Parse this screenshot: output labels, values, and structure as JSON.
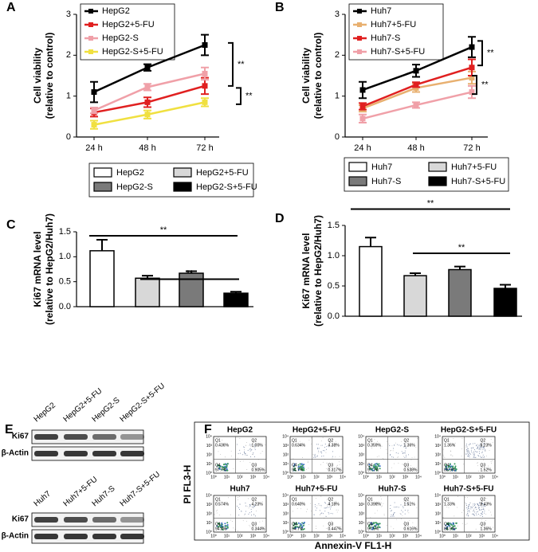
{
  "chart_data": [
    {
      "type": "line",
      "label": "A",
      "ylabel": [
        "Cell viability",
        "(relative to control)"
      ],
      "categories": [
        "24 h",
        "48 h",
        "72 h"
      ],
      "ylim": [
        0,
        3
      ],
      "yticks": [
        0,
        1,
        2,
        3
      ],
      "legend": "top-left",
      "series": [
        {
          "name": "HepG2",
          "color": "#000000",
          "values": [
            1.1,
            1.7,
            2.25
          ],
          "errors": [
            0.25,
            0.08,
            0.25
          ]
        },
        {
          "name": "HepG2+5-FU",
          "color": "#e02020",
          "values": [
            0.6,
            0.85,
            1.25
          ],
          "errors": [
            0.1,
            0.12,
            0.2
          ]
        },
        {
          "name": "HepG2-S",
          "color": "#f0a0a8",
          "values": [
            0.65,
            1.22,
            1.55
          ],
          "errors": [
            0.07,
            0.08,
            0.15
          ]
        },
        {
          "name": "HepG2-S+5-FU",
          "color": "#f0e040",
          "values": [
            0.3,
            0.55,
            0.85
          ],
          "errors": [
            0.1,
            0.1,
            0.1
          ]
        }
      ],
      "brackets": [
        {
          "label": "**",
          "y": [
            2.3,
            1.25
          ]
        },
        {
          "label": "**",
          "y": [
            1.2,
            0.8
          ]
        }
      ]
    },
    {
      "type": "line",
      "label": "B",
      "ylabel": [
        "Cell viability",
        "(relative to control)"
      ],
      "categories": [
        "24 h",
        "48 h",
        "72 h"
      ],
      "ylim": [
        0,
        3
      ],
      "yticks": [
        0,
        1,
        2,
        3
      ],
      "legend": "top-left",
      "series": [
        {
          "name": "Huh7",
          "color": "#000000",
          "values": [
            1.15,
            1.62,
            2.2
          ],
          "errors": [
            0.2,
            0.15,
            0.25
          ]
        },
        {
          "name": "Huh7+5-FU",
          "color": "#e8b070",
          "values": [
            0.7,
            1.2,
            1.45
          ],
          "errors": [
            0.08,
            0.1,
            0.15
          ]
        },
        {
          "name": "Huh7-S",
          "color": "#e02020",
          "values": [
            0.75,
            1.28,
            1.7
          ],
          "errors": [
            0.08,
            0.06,
            0.2
          ]
        },
        {
          "name": "Huh7-S+5-FU",
          "color": "#f0a0a8",
          "values": [
            0.45,
            0.78,
            1.1
          ],
          "errors": [
            0.1,
            0.07,
            0.15
          ]
        }
      ],
      "brackets": [
        {
          "label": "**",
          "y": [
            2.35,
            1.75
          ]
        },
        {
          "label": "**",
          "y": [
            1.5,
            1.05
          ]
        }
      ]
    },
    {
      "type": "bar",
      "label": "C",
      "ylabel": [
        "Ki67 mRNA level",
        "(relative to HepG2/Huh7)"
      ],
      "categories": [
        "HepG2",
        "HepG2+5-FU",
        "HepG2-S",
        "HepG2-S+5-FU"
      ],
      "values": [
        1.12,
        0.57,
        0.67,
        0.27
      ],
      "errors": [
        0.22,
        0.05,
        0.04,
        0.03
      ],
      "colors": [
        "#ffffff",
        "#d8d8d8",
        "#7a7a7a",
        "#000000"
      ],
      "ylim": [
        0,
        1.5
      ],
      "yticks": [
        {
          "value": 0,
          "label": "0.0"
        },
        {
          "value": 0.5,
          "label": "0.5"
        },
        {
          "value": 1,
          "label": "1.0"
        },
        {
          "value": 1.5,
          "label": "1.5"
        }
      ],
      "legend": "top",
      "brackets": [
        {
          "label": "**",
          "y": 1.42
        },
        {
          "label": "**",
          "y": 0.55
        }
      ]
    },
    {
      "type": "bar",
      "label": "D",
      "ylabel": [
        "Ki67 mRNA level",
        "(relative to HepG2/Huh7)"
      ],
      "categories": [
        "Huh7",
        "Huh7+5-FU",
        "Huh7-S",
        "Huh7-S+5-FU"
      ],
      "values": [
        1.15,
        0.67,
        0.77,
        0.46
      ],
      "errors": [
        0.15,
        0.04,
        0.05,
        0.06
      ],
      "colors": [
        "#ffffff",
        "#d8d8d8",
        "#7a7a7a",
        "#000000"
      ],
      "ylim": [
        0,
        1.5
      ],
      "yticks": [
        {
          "value": 0,
          "label": "0.0"
        },
        {
          "value": 0.5,
          "label": "0.5"
        },
        {
          "value": 1,
          "label": "1.0"
        },
        {
          "value": 1.5,
          "label": "1.5"
        }
      ],
      "legend": "top",
      "brackets": [
        {
          "label": "**",
          "y": 1.77
        },
        {
          "label": "**",
          "y": 1.04
        }
      ]
    }
  ],
  "blot": {
    "label": "E",
    "panels": [
      {
        "lanes": [
          "HepG2",
          "HepG2+5-FU",
          "HepG2-S",
          "HepG2-S+5-FU"
        ],
        "rows": [
          "Ki67",
          "β-Actin"
        ]
      },
      {
        "lanes": [
          "Huh7",
          "Huh7+5-FU",
          "Huh7-S",
          "Huh7-S+5-FU"
        ],
        "rows": [
          "Ki67",
          "β-Actin"
        ]
      }
    ]
  },
  "flow": {
    "label": "F",
    "ylabel": "PI FL3-H",
    "xlabel": "Annexin-V FL1-H",
    "ticks": [
      "10⁰",
      "10¹",
      "10²",
      "10³",
      "10⁴"
    ],
    "quadrants": [
      "Q1",
      "Q2",
      "Q3",
      "Q4"
    ],
    "plots": [
      {
        "title": "HepG2",
        "q": [
          "0.436%",
          "1.00%",
          "0.905%",
          "97.7%"
        ]
      },
      {
        "title": "HepG2+5-FU",
        "q": [
          "0.634%",
          "4.38%",
          "0.317%",
          "94.7%"
        ]
      },
      {
        "title": "HepG2-S",
        "q": [
          "0.359%",
          "1.36%",
          "0.538%",
          "97.7%"
        ]
      },
      {
        "title": "HepG2-S+5-FU",
        "q": [
          "1.36%",
          "8.23%",
          "1.52%",
          "88.9%"
        ]
      },
      {
        "title": "Huh7",
        "q": [
          "0.574%",
          "4.23%",
          "0.344%",
          "94.8%"
        ]
      },
      {
        "title": "Huh7+5-FU",
        "q": [
          "0.640%",
          "4.18%",
          "0.447%",
          "94.7%"
        ]
      },
      {
        "title": "Huh7-S",
        "q": [
          "0.399%",
          "1.51%",
          "0.616%",
          "97.5%"
        ]
      },
      {
        "title": "Huh7-S+5-FU",
        "q": [
          "1.33%",
          "8.43%",
          "1.36%",
          "88.9%"
        ]
      }
    ]
  }
}
